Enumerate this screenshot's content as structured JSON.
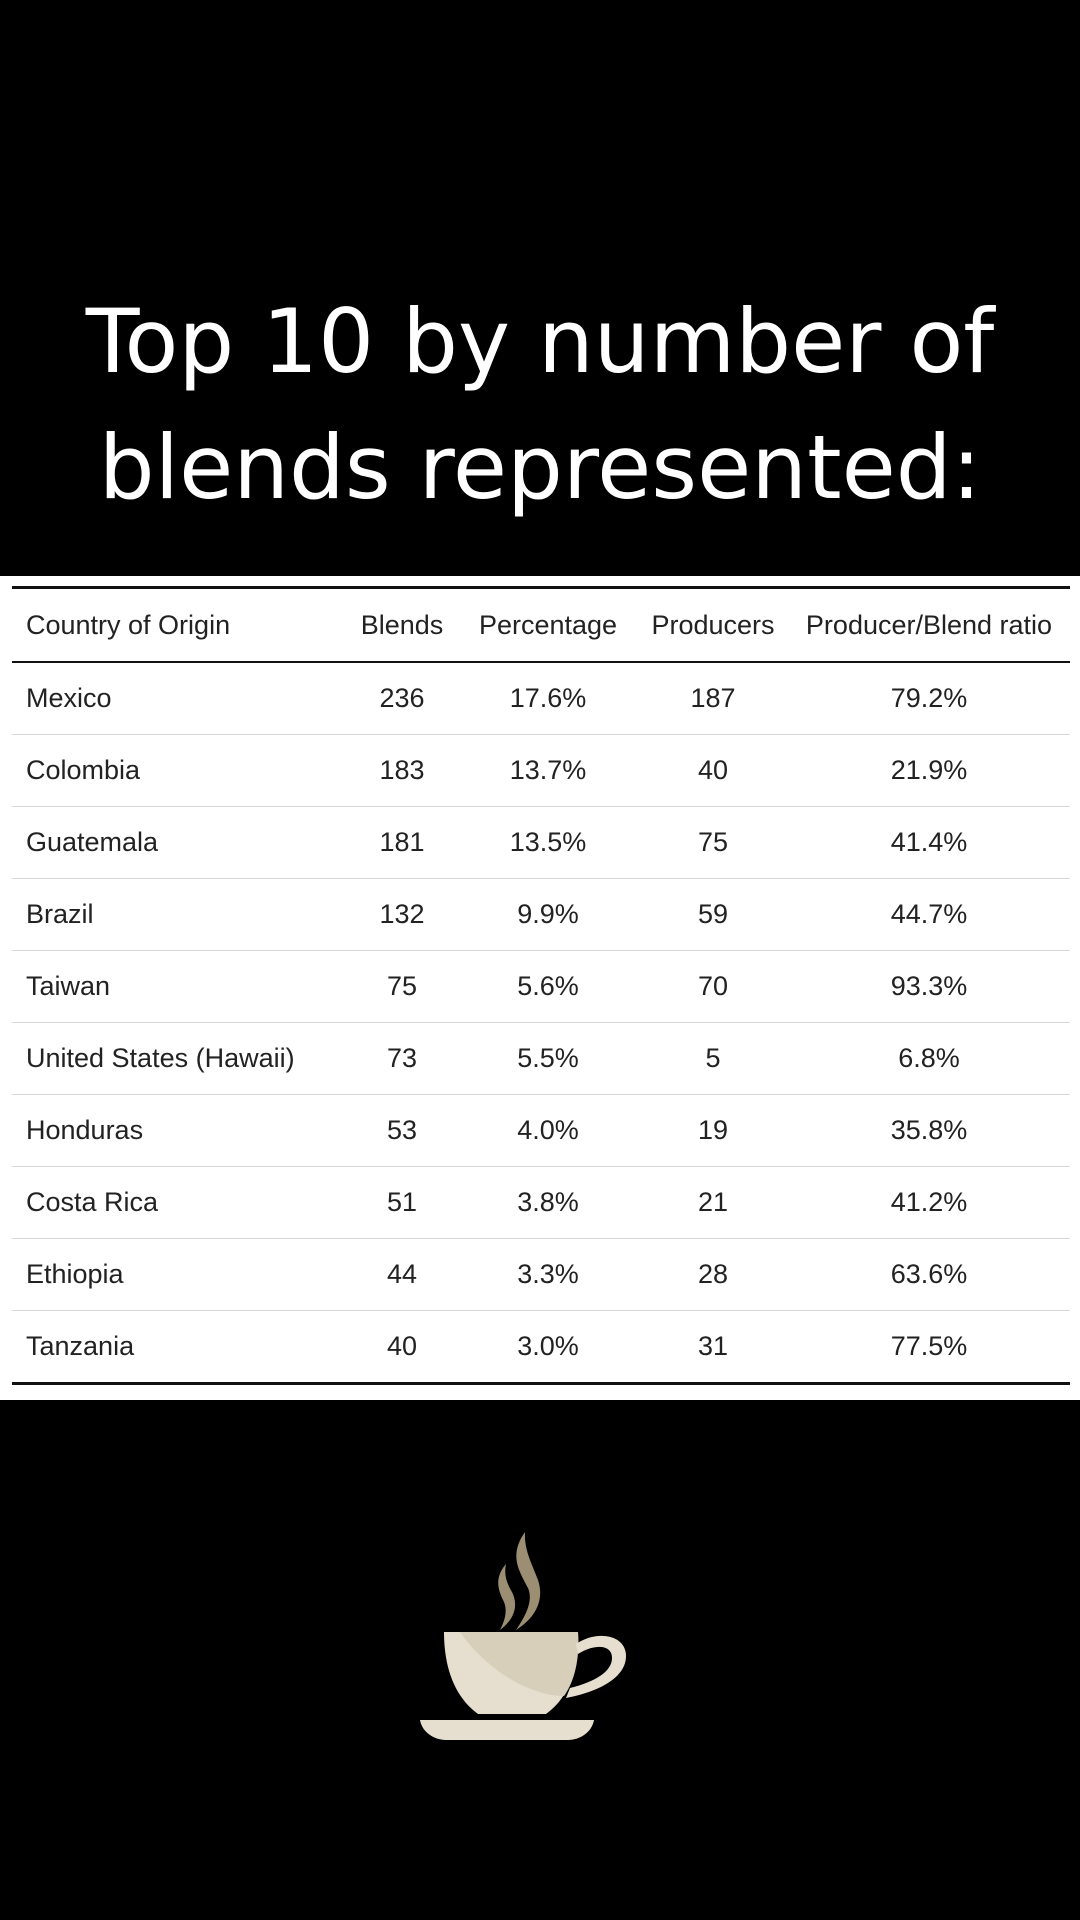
{
  "title": {
    "line1": "Top 10 by number of",
    "line2": "blends represented:"
  },
  "table": {
    "headers": [
      "Country of Origin",
      "Blends",
      "Percentage",
      "Producers",
      "Producer/Blend ratio"
    ],
    "rows": [
      [
        "Mexico",
        "236",
        "17.6%",
        "187",
        "79.2%"
      ],
      [
        "Colombia",
        "183",
        "13.7%",
        "40",
        "21.9%"
      ],
      [
        "Guatemala",
        "181",
        "13.5%",
        "75",
        "41.4%"
      ],
      [
        "Brazil",
        "132",
        "9.9%",
        "59",
        "44.7%"
      ],
      [
        "Taiwan",
        "75",
        "5.6%",
        "70",
        "93.3%"
      ],
      [
        "United States (Hawaii)",
        "73",
        "5.5%",
        "5",
        "6.8%"
      ],
      [
        "Honduras",
        "53",
        "4.0%",
        "19",
        "35.8%"
      ],
      [
        "Costa Rica",
        "51",
        "3.8%",
        "21",
        "41.2%"
      ],
      [
        "Ethiopia",
        "44",
        "3.3%",
        "28",
        "63.6%"
      ],
      [
        "Tanzania",
        "40",
        "3.0%",
        "31",
        "77.5%"
      ]
    ]
  },
  "icon": {
    "name": "coffee-cup-icon",
    "cup_color": "#e6dfcf",
    "steam_color": "#9b8e73"
  }
}
